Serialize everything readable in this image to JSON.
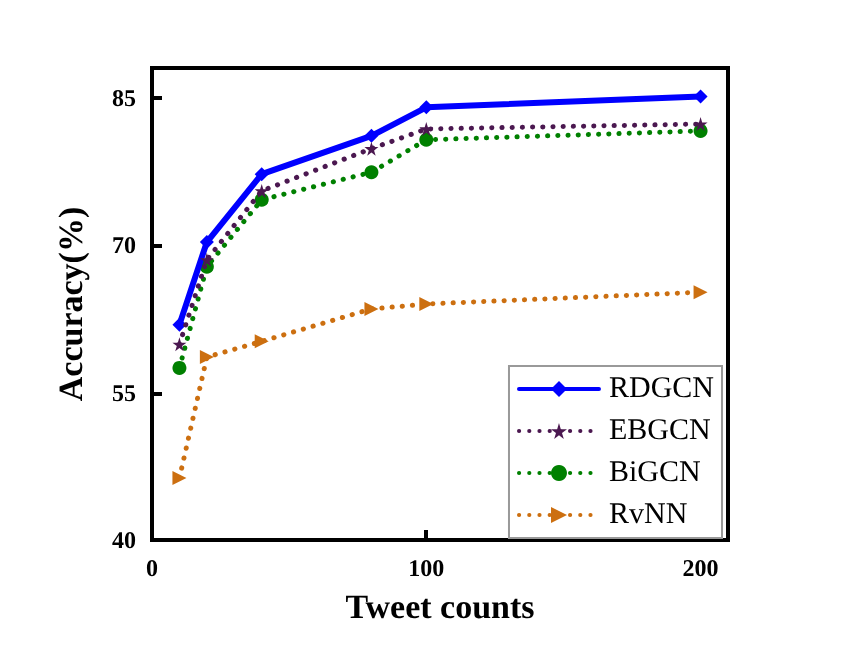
{
  "chart_data": {
    "type": "line",
    "xlabel": "Tweet counts",
    "ylabel": "Accuracy(%)",
    "x": [
      10,
      20,
      40,
      80,
      100,
      200
    ],
    "series": [
      {
        "name": "RDGCN",
        "color": "#0000ff",
        "values": [
          61.9,
          70.3,
          77.2,
          81.1,
          84.0,
          85.1
        ],
        "marker": "diamond",
        "line_style": "solid"
      },
      {
        "name": "EBGCN",
        "color": "#4b1850",
        "values": [
          59.9,
          68.5,
          75.5,
          79.8,
          81.8,
          82.3
        ],
        "marker": "star",
        "line_style": "dotted"
      },
      {
        "name": "BiGCN",
        "color": "#008000",
        "values": [
          57.5,
          67.8,
          74.6,
          77.4,
          80.7,
          81.6
        ],
        "marker": "circle",
        "line_style": "dotted"
      },
      {
        "name": "RvNN",
        "color": "#cc6f10",
        "values": [
          46.3,
          58.6,
          60.2,
          63.5,
          64.0,
          65.2
        ],
        "marker": "triangle",
        "line_style": "dotted"
      }
    ],
    "xlim": [
      0,
      210
    ],
    "xticks": [
      0,
      100,
      200
    ],
    "ylim": [
      40,
      88
    ],
    "yticks": [
      40,
      55,
      70,
      85
    ],
    "grid": false,
    "legend": "bottom right"
  }
}
